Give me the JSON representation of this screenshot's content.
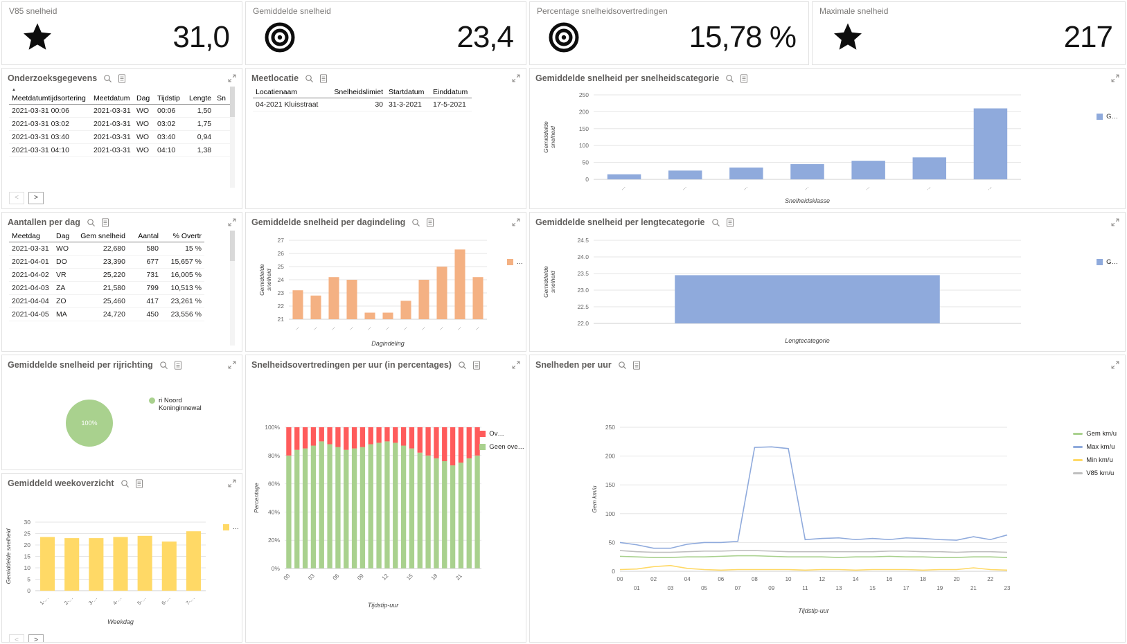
{
  "colors": {
    "blue": "#8faadc",
    "orange": "#f4b183",
    "green": "#a9d18e",
    "red": "#ff5b5b",
    "yellow": "#ffd966",
    "gray_line": "#bfbfbf"
  },
  "kpis": [
    {
      "label": "V85 snelheid",
      "icon": "star",
      "value": "31,0"
    },
    {
      "label": "Gemiddelde snelheid",
      "icon": "target",
      "value": "23,4"
    },
    {
      "label": "Percentage snelheidsovertredingen",
      "icon": "target",
      "value": "15,78 %"
    },
    {
      "label": "Maximale snelheid",
      "icon": "star",
      "value": "217"
    }
  ],
  "panels": {
    "onderzoeksgegevens": {
      "title": "Onderzoeksgegevens",
      "columns": [
        "Meetdatumtijdsortering",
        "Meetdatum",
        "Dag",
        "Tijdstip",
        "Lengte",
        "Sn"
      ],
      "rows": [
        [
          "2021-03-31 00:06",
          "2021-03-31",
          "WO",
          "00:06",
          "1,50",
          ""
        ],
        [
          "2021-03-31 03:02",
          "2021-03-31",
          "WO",
          "03:02",
          "1,75",
          ""
        ],
        [
          "2021-03-31 03:40",
          "2021-03-31",
          "WO",
          "03:40",
          "0,94",
          ""
        ],
        [
          "2021-03-31 04:10",
          "2021-03-31",
          "WO",
          "04:10",
          "1,38",
          ""
        ]
      ],
      "pager": {
        "prev": "<",
        "next": ">"
      }
    },
    "meetlocatie": {
      "title": "Meetlocatie",
      "columns": [
        "Locatienaam",
        "Snelheidslimiet",
        "Startdatum",
        "Einddatum"
      ],
      "rows": [
        [
          "04-2021 Kluisstraat",
          "30",
          "31-3-2021",
          "17-5-2021"
        ]
      ]
    },
    "aantallen_per_dag": {
      "title": "Aantallen per dag",
      "columns": [
        "Meetdag",
        "Dag",
        "Gem snelheid",
        "Aantal",
        "% Overtr"
      ],
      "rows": [
        [
          "2021-03-31",
          "WO",
          "22,680",
          "580",
          "15 %"
        ],
        [
          "2021-04-01",
          "DO",
          "23,390",
          "677",
          "15,657 %"
        ],
        [
          "2021-04-02",
          "VR",
          "25,220",
          "731",
          "16,005 %"
        ],
        [
          "2021-04-03",
          "ZA",
          "21,580",
          "799",
          "10,513 %"
        ],
        [
          "2021-04-04",
          "ZO",
          "25,460",
          "417",
          "23,261 %"
        ],
        [
          "2021-04-05",
          "MA",
          "24,720",
          "450",
          "23,556 %"
        ]
      ]
    },
    "snelheidscategorie": {
      "title": "Gemiddelde snelheid per snelheidscategorie"
    },
    "dagindeling": {
      "title": "Gemiddelde snelheid per dagindeling"
    },
    "lengtecategorie": {
      "title": "Gemiddelde snelheid per lengtecategorie"
    },
    "rijrichting": {
      "title": "Gemiddelde snelheid per rijrichting"
    },
    "overtredingen_uur": {
      "title": "Snelheidsovertredingen per uur (in percentages)"
    },
    "snelheden_uur": {
      "title": "Snelheden per uur"
    },
    "weekoverzicht": {
      "title": "Gemiddeld weekoverzicht",
      "pager": {
        "prev": "<",
        "next": ">"
      }
    }
  },
  "chart_data": [
    {
      "id": "snelheidscategorie-chart",
      "type": "bar",
      "title": "Gemiddelde snelheid per snelheidscategorie",
      "categories": [
        "…",
        "…",
        "…",
        "…",
        "…",
        "…",
        "…"
      ],
      "values": [
        15,
        26,
        35,
        45,
        55,
        65,
        210
      ],
      "ylim": [
        0,
        250
      ],
      "yticks": [
        0,
        50,
        100,
        150,
        200,
        250
      ],
      "ytick_labels": [
        "0",
        "50",
        "100",
        "150",
        "200",
        "250"
      ],
      "xlabel": "Snelheidsklasse",
      "ylabel": "Gemiddelde snelheid",
      "color": "#8faadc",
      "grid": true,
      "legend": {
        "position": "right-top",
        "items": [
          {
            "label": "G…",
            "color": "#8faadc",
            "shape": "square"
          }
        ]
      }
    },
    {
      "id": "dagindeling-chart",
      "type": "bar",
      "title": "Gemiddelde snelheid per dagindeling",
      "categories": [
        "…",
        "…",
        "…",
        "…",
        "…",
        "…",
        "…",
        "…",
        "…",
        "…",
        "…"
      ],
      "values": [
        23.2,
        22.8,
        24.2,
        24.0,
        21.5,
        21.5,
        22.4,
        24.0,
        25.0,
        26.3,
        24.2
      ],
      "ylim": [
        21,
        27
      ],
      "yticks": [
        21,
        22,
        23,
        24,
        25,
        26,
        27
      ],
      "ytick_labels": [
        "21",
        "22",
        "23",
        "24",
        "25",
        "26",
        "27"
      ],
      "xlabel": "Dagindeling",
      "ylabel": "Gemiddelde snelheid",
      "color": "#f4b183",
      "grid": true,
      "legend": {
        "position": "right-top",
        "items": [
          {
            "label": "…",
            "color": "#f4b183",
            "shape": "square"
          }
        ]
      }
    },
    {
      "id": "lengtecategorie-chart",
      "type": "bar",
      "title": "Gemiddelde snelheid per lengtecategorie",
      "categories": [
        ""
      ],
      "values": [
        23.45
      ],
      "ylim": [
        22.0,
        24.5
      ],
      "yticks": [
        22.0,
        22.5,
        23.0,
        23.5,
        24.0,
        24.5
      ],
      "ytick_labels": [
        "22.0",
        "22.5",
        "23.0",
        "23.5",
        "24.0",
        "24.5"
      ],
      "xlabel": "Lengtecategorie",
      "ylabel": "Gemiddelde snelheid",
      "color": "#8faadc",
      "grid": true,
      "legend": {
        "position": "right-top",
        "items": [
          {
            "label": "G…",
            "color": "#8faadc",
            "shape": "square"
          }
        ]
      }
    },
    {
      "id": "rijrichting-chart",
      "type": "pie",
      "title": "Gemiddelde snelheid per rijrichting",
      "slices": [
        {
          "label": "ri Noord Koninginnewal",
          "value": 100,
          "pct_label": "100%",
          "color": "#a9d18e"
        }
      ],
      "legend": {
        "position": "right",
        "items": [
          {
            "label": "ri Noord Koninginnewal",
            "color": "#a9d18e",
            "shape": "dot"
          }
        ]
      }
    },
    {
      "id": "overtredingen-uur-chart",
      "type": "stacked-bar",
      "title": "Snelheidsovertredingen per uur (in percentages)",
      "categories": [
        "00",
        "01",
        "02",
        "03",
        "04",
        "05",
        "06",
        "07",
        "08",
        "09",
        "10",
        "11",
        "12",
        "13",
        "14",
        "15",
        "16",
        "17",
        "18",
        "19",
        "20",
        "21",
        "22",
        "23"
      ],
      "series": [
        {
          "name": "Geen ove…",
          "color": "#a9d18e",
          "values": [
            80,
            84,
            85,
            87,
            90,
            88,
            86,
            84,
            85,
            86,
            88,
            89,
            90,
            89,
            87,
            85,
            82,
            80,
            78,
            76,
            73,
            75,
            78,
            80
          ]
        },
        {
          "name": "Ov…",
          "color": "#ff5b5b",
          "values": [
            20,
            16,
            15,
            13,
            10,
            12,
            14,
            16,
            15,
            14,
            12,
            11,
            10,
            11,
            13,
            15,
            18,
            20,
            22,
            24,
            27,
            25,
            22,
            20
          ]
        }
      ],
      "ylim": [
        0,
        100
      ],
      "yticks": [
        0,
        20,
        40,
        60,
        80,
        100
      ],
      "ytick_labels": [
        "0%",
        "20%",
        "40%",
        "60%",
        "80%",
        "100%"
      ],
      "xlabel": "Tijdstip-uur",
      "ylabel": "Percentage",
      "legend": {
        "position": "right-top",
        "items": [
          {
            "label": "Ov…",
            "color": "#ff5b5b",
            "shape": "square"
          },
          {
            "label": "Geen ove…",
            "color": "#a9d18e",
            "shape": "square"
          }
        ]
      }
    },
    {
      "id": "snelheden-uur-chart",
      "type": "line",
      "title": "Snelheden per uur",
      "x": [
        "00",
        "01",
        "02",
        "03",
        "04",
        "05",
        "06",
        "07",
        "08",
        "09",
        "10",
        "11",
        "12",
        "13",
        "14",
        "15",
        "16",
        "17",
        "18",
        "19",
        "20",
        "21",
        "22",
        "23"
      ],
      "series": [
        {
          "name": "Gem km/u",
          "color": "#a9d18e",
          "values": [
            26,
            25,
            24,
            24,
            25,
            25,
            26,
            27,
            27,
            26,
            25,
            25,
            25,
            24,
            25,
            25,
            26,
            25,
            25,
            24,
            24,
            25,
            25,
            24
          ]
        },
        {
          "name": "Max km/u",
          "color": "#8faadc",
          "values": [
            50,
            46,
            40,
            40,
            47,
            50,
            50,
            52,
            215,
            216,
            213,
            55,
            57,
            58,
            55,
            57,
            55,
            58,
            57,
            55,
            54,
            60,
            55,
            63
          ]
        },
        {
          "name": "Min km/u",
          "color": "#ffd966",
          "values": [
            3,
            4,
            8,
            10,
            5,
            3,
            2,
            3,
            3,
            3,
            3,
            2,
            3,
            3,
            2,
            3,
            3,
            3,
            2,
            3,
            3,
            6,
            3,
            2
          ]
        },
        {
          "name": "V85 km/u",
          "color": "#bfbfbf",
          "values": [
            36,
            34,
            33,
            33,
            34,
            35,
            35,
            36,
            36,
            35,
            34,
            34,
            34,
            34,
            34,
            34,
            35,
            35,
            34,
            34,
            33,
            34,
            34,
            33
          ]
        }
      ],
      "ylim": [
        0,
        250
      ],
      "yticks": [
        0,
        50,
        100,
        150,
        200,
        250
      ],
      "ytick_labels": [
        "0",
        "50",
        "100",
        "150",
        "200",
        "250"
      ],
      "xlabel": "Tijdstip-uur",
      "ylabel": "Gem km/u",
      "legend": {
        "position": "right-top",
        "items": [
          {
            "label": "Gem km/u",
            "color": "#a9d18e",
            "shape": "line"
          },
          {
            "label": "Max km/u",
            "color": "#8faadc",
            "shape": "line"
          },
          {
            "label": "Min km/u",
            "color": "#ffd966",
            "shape": "line"
          },
          {
            "label": "V85 km/u",
            "color": "#bfbfbf",
            "shape": "line"
          }
        ]
      }
    },
    {
      "id": "weekoverzicht-chart",
      "type": "bar",
      "title": "Gemiddeld weekoverzicht",
      "categories": [
        "1-…",
        "2-…",
        "3-…",
        "4-…",
        "5-…",
        "6-…",
        "7-…"
      ],
      "values": [
        23.5,
        23.0,
        23.0,
        23.5,
        24.0,
        21.5,
        26.0
      ],
      "ylim": [
        0,
        30
      ],
      "yticks": [
        0,
        5,
        10,
        15,
        20,
        25,
        30
      ],
      "ytick_labels": [
        "0",
        "5",
        "10",
        "15",
        "20",
        "25",
        "30"
      ],
      "xlabel": "Weekdag",
      "ylabel": "Gemiddelde snelheid",
      "color": "#ffd966",
      "grid": true,
      "legend": {
        "position": "right-top",
        "items": [
          {
            "label": "…",
            "color": "#ffd966",
            "shape": "square"
          }
        ]
      }
    }
  ]
}
